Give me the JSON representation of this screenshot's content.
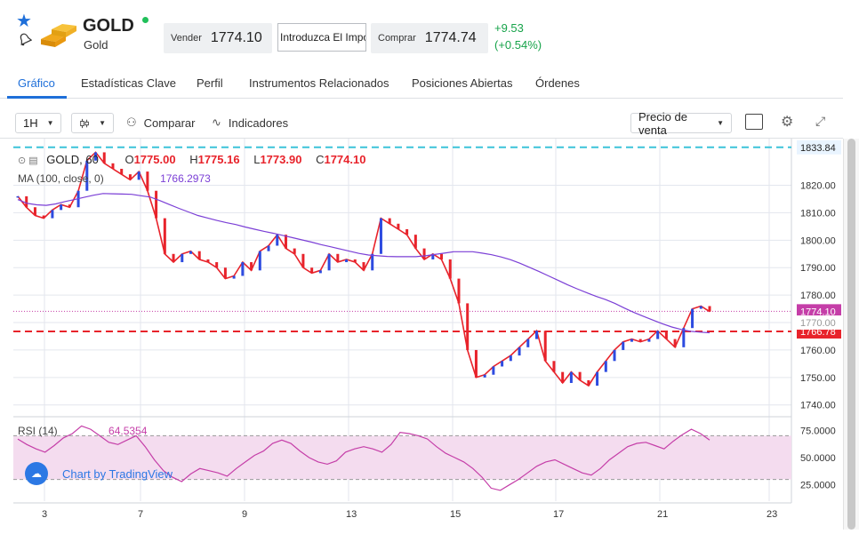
{
  "header": {
    "title": "GOLD",
    "subtitle": "Gold",
    "sell_label": "Vender",
    "sell_price": "1774.10",
    "quantity_placeholder": "Introduzca El Importe",
    "buy_label": "Comprar",
    "buy_price": "1774.74",
    "change_abs": "+9.53",
    "change_pct": "(+0.54%)",
    "status_color": "#20c05a"
  },
  "tabs": [
    "Gráfico",
    "Estadísticas Clave",
    "Perfil",
    "Instrumentos Relacionados",
    "Posiciones Abiertas",
    "Órdenes"
  ],
  "active_tab": "Gráfico",
  "toolbar": {
    "interval": "1H",
    "compare_label": "Comparar",
    "indicators_label": "Indicadores",
    "price_type": "Precio de venta"
  },
  "legend": {
    "symbol": "GOLD, 60",
    "o_label": "O",
    "o_value": "1775.00",
    "h_label": "H",
    "h_value": "1775.16",
    "l_label": "L",
    "l_value": "1773.90",
    "c_label": "C",
    "c_value": "1774.10",
    "ma_label": "MA (100, close, 0)",
    "ma_value": "1766.2973",
    "rsi_label": "RSI (14)",
    "rsi_value": "64.5354"
  },
  "watermark": "Chart by TradingView",
  "chart_data": {
    "type": "line",
    "title": "",
    "x_ticks": [
      "3",
      "7",
      "9",
      "13",
      "15",
      "17",
      "21",
      "23"
    ],
    "y_ticks": [
      "1740.00",
      "1750.00",
      "1760.00",
      "1770.00",
      "1780.00",
      "1790.00",
      "1800.00",
      "1810.00",
      "1820.00"
    ],
    "ylim": [
      1737,
      1837
    ],
    "price_labels": {
      "top_line": "1833.84",
      "last": "1774.10",
      "bottom_line": "1766.78",
      "hidden": "1770.00"
    },
    "series": [
      {
        "name": "GOLD, 60",
        "color": "#e8232b",
        "values": [
          1816,
          1812,
          1809,
          1808,
          1811,
          1813,
          1812,
          1818,
          1829,
          1832,
          1828,
          1826,
          1824,
          1822,
          1825,
          1818,
          1808,
          1795,
          1792,
          1795,
          1796,
          1793,
          1792,
          1790,
          1786,
          1787,
          1792,
          1789,
          1796,
          1798,
          1802,
          1797,
          1795,
          1790,
          1788,
          1789,
          1795,
          1792,
          1793,
          1792,
          1789,
          1795,
          1808,
          1806,
          1804,
          1802,
          1797,
          1793,
          1795,
          1793,
          1786,
          1777,
          1760,
          1750,
          1751,
          1754,
          1756,
          1758,
          1761,
          1764,
          1767,
          1756,
          1752,
          1748,
          1752,
          1749,
          1747,
          1752,
          1756,
          1760,
          1763,
          1764,
          1763,
          1764,
          1767,
          1764,
          1761,
          1768,
          1775,
          1776,
          1774
        ]
      },
      {
        "name": "MA (100, close, 0)",
        "color": "#7b3fd6",
        "values": [
          1814.8,
          1813.4,
          1812.9,
          1812.7,
          1813.2,
          1814.1,
          1814.8,
          1815.6,
          1816.4,
          1817.0,
          1816.9,
          1816.8,
          1816.7,
          1816.2,
          1815.7,
          1814.4,
          1813.0,
          1811.6,
          1810.3,
          1809.0,
          1808.1,
          1807.2,
          1806.4,
          1805.7,
          1804.8,
          1804.0,
          1803.2,
          1802.5,
          1801.7,
          1800.9,
          1800.1,
          1799.3,
          1798.4,
          1797.6,
          1796.8,
          1796.0,
          1795.2,
          1794.6,
          1794.3,
          1794.1,
          1794.0,
          1794.0,
          1794.0,
          1794.3,
          1794.8,
          1795.3,
          1795.8,
          1795.8,
          1795.8,
          1795.3,
          1794.7,
          1793.9,
          1792.9,
          1791.6,
          1790.1,
          1788.6,
          1787.0,
          1785.4,
          1783.8,
          1782.3,
          1780.9,
          1779.6,
          1778.4,
          1777.0,
          1775.3,
          1773.7,
          1772.3,
          1770.9,
          1769.6,
          1768.4,
          1767.5,
          1766.8,
          1766.5,
          1766.3
        ]
      },
      {
        "name": "RSI (14)",
        "color": "#c53ea8",
        "values": [
          67,
          62,
          58,
          55,
          61,
          68,
          72,
          79,
          76,
          70,
          64,
          62,
          66,
          70,
          60,
          48,
          38,
          32,
          28,
          35,
          40,
          38,
          36,
          33,
          40,
          46,
          52,
          56,
          63,
          66,
          63,
          56,
          50,
          46,
          44,
          47,
          55,
          58,
          60,
          58,
          55,
          62,
          73,
          72,
          70,
          67,
          60,
          54,
          50,
          46,
          40,
          32,
          22,
          20,
          25,
          30,
          36,
          42,
          46,
          48,
          44,
          40,
          36,
          34,
          40,
          48,
          54,
          60,
          63,
          64,
          61,
          58,
          65,
          71,
          76,
          72,
          66
        ]
      }
    ],
    "rsi_ylim": [
      15,
      85
    ],
    "rsi_ticks": [
      "25.0000",
      "50.0000",
      "75.0000"
    ]
  }
}
